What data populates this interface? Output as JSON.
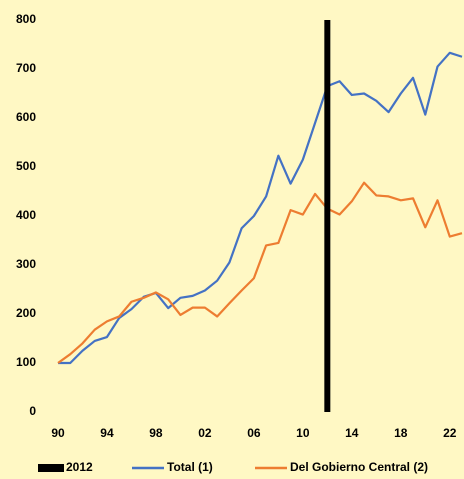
{
  "chart_data": {
    "type": "line",
    "x": [
      1990,
      1991,
      1992,
      1993,
      1994,
      1995,
      1996,
      1997,
      1998,
      1999,
      2000,
      2001,
      2002,
      2003,
      2004,
      2005,
      2006,
      2007,
      2008,
      2009,
      2010,
      2011,
      2012,
      2013,
      2014,
      2015,
      2016,
      2017,
      2018,
      2019,
      2020,
      2021,
      2022,
      2023
    ],
    "xlim": [
      1990,
      2023
    ],
    "xticks": [
      {
        "value": 1990,
        "label": "90"
      },
      {
        "value": 1994,
        "label": "94"
      },
      {
        "value": 1998,
        "label": "98"
      },
      {
        "value": 2002,
        "label": "02"
      },
      {
        "value": 2006,
        "label": "06"
      },
      {
        "value": 2010,
        "label": "10"
      },
      {
        "value": 2014,
        "label": "14"
      },
      {
        "value": 2018,
        "label": "18"
      },
      {
        "value": 2022,
        "label": "22"
      }
    ],
    "ylim": [
      0,
      800
    ],
    "yticks": [
      0,
      100,
      200,
      300,
      400,
      500,
      600,
      700,
      800
    ],
    "reference_line": {
      "name": "2012",
      "x": 2012,
      "color": "#000000"
    },
    "series": [
      {
        "name": "Total (1)",
        "color": "#4472c4",
        "values": [
          100,
          100,
          125,
          145,
          153,
          192,
          210,
          235,
          243,
          212,
          233,
          237,
          248,
          268,
          305,
          375,
          400,
          440,
          523,
          466,
          515,
          590,
          665,
          675,
          647,
          650,
          635,
          612,
          650,
          682,
          607,
          705,
          733,
          725
        ]
      },
      {
        "name": "Del Gobierno Central (2)",
        "color": "#ed7d31",
        "values": [
          100,
          118,
          140,
          168,
          185,
          195,
          225,
          233,
          244,
          230,
          198,
          213,
          213,
          195,
          222,
          248,
          273,
          340,
          345,
          412,
          403,
          445,
          415,
          403,
          430,
          468,
          442,
          440,
          432,
          436,
          377,
          432,
          358,
          365
        ]
      }
    ]
  }
}
